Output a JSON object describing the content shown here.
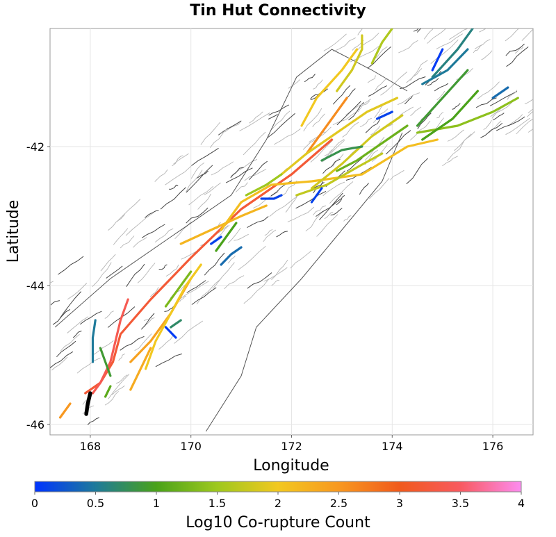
{
  "chart_data": {
    "type": "map",
    "title": "Tin Hut Connectivity",
    "xlabel": "Longitude",
    "ylabel": "Latitude",
    "xlim": [
      167.2,
      176.8
    ],
    "ylim": [
      -46.15,
      -40.3
    ],
    "x_ticks": [
      {
        "value": 168,
        "label": "168"
      },
      {
        "value": 170,
        "label": "170"
      },
      {
        "value": 172,
        "label": "172"
      },
      {
        "value": 174,
        "label": "174"
      },
      {
        "value": 176,
        "label": "176"
      }
    ],
    "y_ticks": [
      {
        "value": -42,
        "label": "-42"
      },
      {
        "value": -44,
        "label": "-44"
      },
      {
        "value": -46,
        "label": "-46"
      }
    ],
    "grid": true,
    "colorbar": {
      "label": "Log10 Co-rupture Count",
      "range": [
        0,
        4
      ],
      "ticks": [
        {
          "value": 0,
          "label": "0"
        },
        {
          "value": 0.5,
          "label": "0.5"
        },
        {
          "value": 1,
          "label": "1"
        },
        {
          "value": 1.5,
          "label": "1.5"
        },
        {
          "value": 2,
          "label": "2"
        },
        {
          "value": 2.5,
          "label": "2.5"
        },
        {
          "value": 3,
          "label": "3"
        },
        {
          "value": 3.5,
          "label": "3.5"
        },
        {
          "value": 4,
          "label": "4"
        }
      ],
      "stops": [
        {
          "value": 0,
          "color": "#0034ff"
        },
        {
          "value": 0.5,
          "color": "#1e7a9a"
        },
        {
          "value": 1,
          "color": "#4aa21a"
        },
        {
          "value": 1.5,
          "color": "#9ec81e"
        },
        {
          "value": 2,
          "color": "#f2c820"
        },
        {
          "value": 2.5,
          "color": "#f89820"
        },
        {
          "value": 3,
          "color": "#f05a1c"
        },
        {
          "value": 3.5,
          "color": "#f85a60"
        },
        {
          "value": 4,
          "color": "#fc8cf0"
        }
      ]
    },
    "target_fault": {
      "name": "Tin Hut",
      "color": "#000000",
      "path": [
        [
          168.0,
          -45.55
        ],
        [
          167.95,
          -45.7
        ],
        [
          167.92,
          -45.85
        ]
      ]
    },
    "ruptures": [
      {
        "value": 3.2,
        "path": [
          [
            167.9,
            -45.55
          ],
          [
            168.2,
            -45.4
          ],
          [
            168.45,
            -45.1
          ],
          [
            168.6,
            -44.7
          ],
          [
            169.2,
            -44.2
          ],
          [
            170.0,
            -43.6
          ],
          [
            171.0,
            -42.9
          ],
          [
            172.0,
            -42.4
          ],
          [
            172.8,
            -41.9
          ]
        ]
      },
      {
        "value": 3.4,
        "path": [
          [
            168.05,
            -45.55
          ],
          [
            168.2,
            -45.4
          ],
          [
            168.4,
            -45.1
          ],
          [
            168.6,
            -44.5
          ],
          [
            168.75,
            -44.2
          ]
        ]
      },
      {
        "value": 2.6,
        "path": [
          [
            172.3,
            -42.1
          ],
          [
            172.5,
            -41.9
          ],
          [
            172.8,
            -41.6
          ],
          [
            173.1,
            -41.3
          ]
        ]
      },
      {
        "value": 2.5,
        "path": [
          [
            167.4,
            -45.9
          ],
          [
            167.6,
            -45.7
          ]
        ]
      },
      {
        "value": 2.4,
        "path": [
          [
            168.8,
            -45.1
          ],
          [
            169.2,
            -44.8
          ],
          [
            169.6,
            -44.4
          ],
          [
            170.0,
            -43.9
          ]
        ]
      },
      {
        "value": 2.3,
        "path": [
          [
            168.8,
            -45.5
          ],
          [
            169.0,
            -45.2
          ],
          [
            169.2,
            -44.9
          ]
        ]
      },
      {
        "value": 2.2,
        "path": [
          [
            169.8,
            -43.4
          ],
          [
            170.4,
            -43.2
          ],
          [
            171.0,
            -43.0
          ],
          [
            171.5,
            -42.85
          ]
        ]
      },
      {
        "value": 2.1,
        "path": [
          [
            170.6,
            -43.2
          ],
          [
            171.0,
            -42.8
          ],
          [
            171.6,
            -42.55
          ],
          [
            172.4,
            -42.5
          ],
          [
            173.4,
            -42.4
          ],
          [
            174.3,
            -42.0
          ],
          [
            174.9,
            -41.9
          ]
        ]
      },
      {
        "value": 2.0,
        "path": [
          [
            169.1,
            -45.2
          ],
          [
            169.3,
            -44.8
          ],
          [
            169.6,
            -44.4
          ],
          [
            169.9,
            -44.0
          ],
          [
            170.2,
            -43.7
          ]
        ]
      },
      {
        "value": 2.0,
        "path": [
          [
            172.2,
            -41.7
          ],
          [
            172.5,
            -41.3
          ],
          [
            173.0,
            -40.9
          ],
          [
            173.3,
            -40.6
          ]
        ]
      },
      {
        "value": 1.9,
        "path": [
          [
            171.8,
            -42.4
          ],
          [
            172.3,
            -42.1
          ],
          [
            172.9,
            -41.8
          ],
          [
            173.5,
            -41.5
          ],
          [
            174.1,
            -41.3
          ]
        ]
      },
      {
        "value": 1.8,
        "path": [
          [
            172.4,
            -42.6
          ],
          [
            173.0,
            -42.25
          ],
          [
            173.6,
            -41.85
          ],
          [
            174.2,
            -41.55
          ]
        ]
      },
      {
        "value": 1.8,
        "path": [
          [
            172.9,
            -41.2
          ],
          [
            173.2,
            -40.9
          ],
          [
            173.4,
            -40.6
          ],
          [
            173.4,
            -40.4
          ]
        ]
      },
      {
        "value": 1.7,
        "path": [
          [
            172.1,
            -42.7
          ],
          [
            172.7,
            -42.55
          ],
          [
            173.3,
            -42.3
          ],
          [
            173.8,
            -42.1
          ]
        ]
      },
      {
        "value": 1.6,
        "path": [
          [
            173.6,
            -40.8
          ],
          [
            173.8,
            -40.5
          ],
          [
            174.0,
            -40.3
          ]
        ]
      },
      {
        "value": 1.5,
        "path": [
          [
            171.1,
            -42.7
          ],
          [
            171.5,
            -42.55
          ],
          [
            171.8,
            -42.4
          ]
        ]
      },
      {
        "value": 1.4,
        "path": [
          [
            174.5,
            -41.8
          ],
          [
            175.3,
            -41.7
          ],
          [
            176.0,
            -41.5
          ],
          [
            176.5,
            -41.3
          ]
        ]
      },
      {
        "value": 1.3,
        "path": [
          [
            169.5,
            -44.3
          ],
          [
            169.8,
            -44.0
          ],
          [
            170.0,
            -43.8
          ]
        ]
      },
      {
        "value": 1.2,
        "path": [
          [
            172.9,
            -42.35
          ],
          [
            173.3,
            -42.2
          ],
          [
            173.8,
            -41.95
          ],
          [
            174.3,
            -41.7
          ]
        ]
      },
      {
        "value": 1.1,
        "path": [
          [
            168.3,
            -45.6
          ],
          [
            168.4,
            -45.45
          ]
        ]
      },
      {
        "value": 1.0,
        "path": [
          [
            170.5,
            -43.5
          ],
          [
            170.7,
            -43.3
          ],
          [
            170.9,
            -43.1
          ]
        ]
      },
      {
        "value": 1.0,
        "path": [
          [
            174.6,
            -41.9
          ],
          [
            175.2,
            -41.6
          ],
          [
            175.7,
            -41.2
          ]
        ]
      },
      {
        "value": 0.9,
        "path": [
          [
            168.2,
            -44.9
          ],
          [
            168.3,
            -45.1
          ],
          [
            168.4,
            -45.3
          ]
        ]
      },
      {
        "value": 0.9,
        "path": [
          [
            174.5,
            -41.7
          ],
          [
            175.0,
            -41.3
          ],
          [
            175.5,
            -40.9
          ]
        ]
      },
      {
        "value": 0.8,
        "path": [
          [
            172.6,
            -42.2
          ],
          [
            173.0,
            -42.05
          ],
          [
            173.4,
            -42.0
          ]
        ]
      },
      {
        "value": 0.7,
        "path": [
          [
            169.6,
            -44.6
          ],
          [
            169.8,
            -44.5
          ]
        ]
      },
      {
        "value": 0.6,
        "path": [
          [
            174.8,
            -41.0
          ],
          [
            175.3,
            -40.6
          ],
          [
            175.6,
            -40.3
          ]
        ]
      },
      {
        "value": 0.5,
        "path": [
          [
            168.1,
            -44.5
          ],
          [
            168.05,
            -44.75
          ],
          [
            168.05,
            -45.1
          ]
        ]
      },
      {
        "value": 0.5,
        "path": [
          [
            174.6,
            -41.1
          ],
          [
            175.1,
            -40.9
          ],
          [
            175.5,
            -40.6
          ]
        ]
      },
      {
        "value": 0.4,
        "path": [
          [
            170.6,
            -43.7
          ],
          [
            170.8,
            -43.55
          ],
          [
            171.0,
            -43.45
          ]
        ]
      },
      {
        "value": 0.4,
        "path": [
          [
            176.0,
            -41.3
          ],
          [
            176.3,
            -41.15
          ]
        ]
      },
      {
        "value": 0.1,
        "path": [
          [
            171.4,
            -42.75
          ],
          [
            171.65,
            -42.75
          ],
          [
            171.8,
            -42.7
          ]
        ]
      },
      {
        "value": 0.1,
        "path": [
          [
            170.4,
            -43.4
          ],
          [
            170.6,
            -43.3
          ]
        ]
      },
      {
        "value": 0.1,
        "path": [
          [
            172.4,
            -42.8
          ],
          [
            172.6,
            -42.6
          ]
        ]
      },
      {
        "value": 0.05,
        "path": [
          [
            174.8,
            -40.9
          ],
          [
            175.0,
            -40.6
          ]
        ]
      },
      {
        "value": 0.1,
        "path": [
          [
            173.7,
            -41.6
          ],
          [
            174.0,
            -41.5
          ]
        ]
      },
      {
        "value": 0.05,
        "path": [
          [
            169.5,
            -44.6
          ],
          [
            169.7,
            -44.75
          ]
        ]
      }
    ]
  }
}
